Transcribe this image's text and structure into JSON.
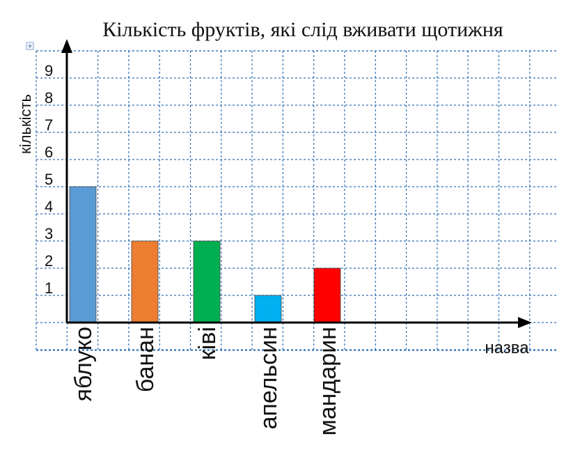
{
  "chart_data": {
    "type": "bar",
    "title": "Кількість фруктів, які слід вживати щотижня",
    "xlabel": "назва",
    "ylabel": "кількість",
    "categories": [
      "яблуко",
      "банан",
      "ківі",
      "апельсин",
      "мандарин"
    ],
    "values": [
      5,
      3,
      3,
      1,
      2
    ],
    "colors": [
      "#5b9bd5",
      "#ed7d31",
      "#00b050",
      "#00b0f0",
      "#ff0000"
    ],
    "yticks": [
      1,
      2,
      3,
      4,
      5,
      6,
      7,
      8,
      9
    ],
    "ylim": [
      0,
      10
    ],
    "grid": true
  }
}
